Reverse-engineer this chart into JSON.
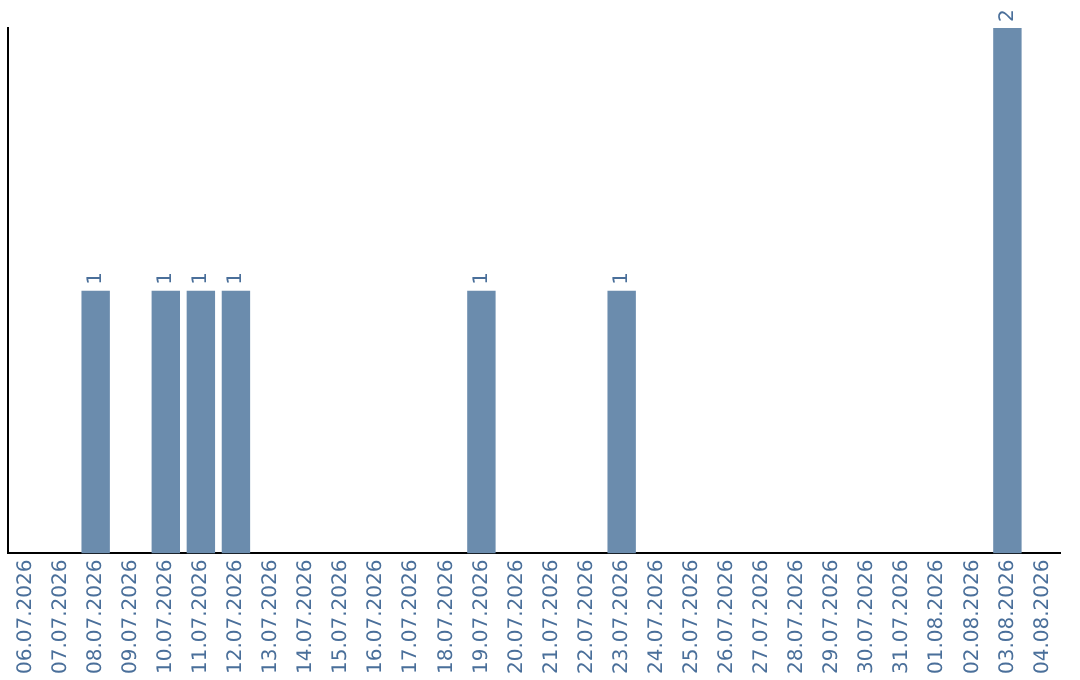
{
  "chart_data": {
    "type": "bar",
    "categories": [
      "06.07.2026",
      "07.07.2026",
      "08.07.2026",
      "09.07.2026",
      "10.07.2026",
      "11.07.2026",
      "12.07.2026",
      "13.07.2026",
      "14.07.2026",
      "15.07.2026",
      "16.07.2026",
      "17.07.2026",
      "18.07.2026",
      "19.07.2026",
      "20.07.2026",
      "21.07.2026",
      "22.07.2026",
      "23.07.2026",
      "24.07.2026",
      "25.07.2026",
      "26.07.2026",
      "27.07.2026",
      "28.07.2026",
      "29.07.2026",
      "30.07.2026",
      "31.07.2026",
      "01.08.2026",
      "02.08.2026",
      "03.08.2026",
      "04.08.2026"
    ],
    "values": [
      0,
      0,
      1,
      0,
      1,
      1,
      1,
      0,
      0,
      0,
      0,
      0,
      0,
      1,
      0,
      0,
      0,
      1,
      0,
      0,
      0,
      0,
      0,
      0,
      0,
      0,
      0,
      0,
      2,
      0
    ],
    "value_labels": [
      null,
      null,
      "1",
      null,
      "1",
      "1",
      "1",
      null,
      null,
      null,
      null,
      null,
      null,
      "1",
      null,
      null,
      null,
      "1",
      null,
      null,
      null,
      null,
      null,
      null,
      null,
      null,
      null,
      null,
      "2",
      null
    ],
    "color": "#6b8cad",
    "grid": false,
    "legend": false,
    "tick_labels": "x"
  }
}
